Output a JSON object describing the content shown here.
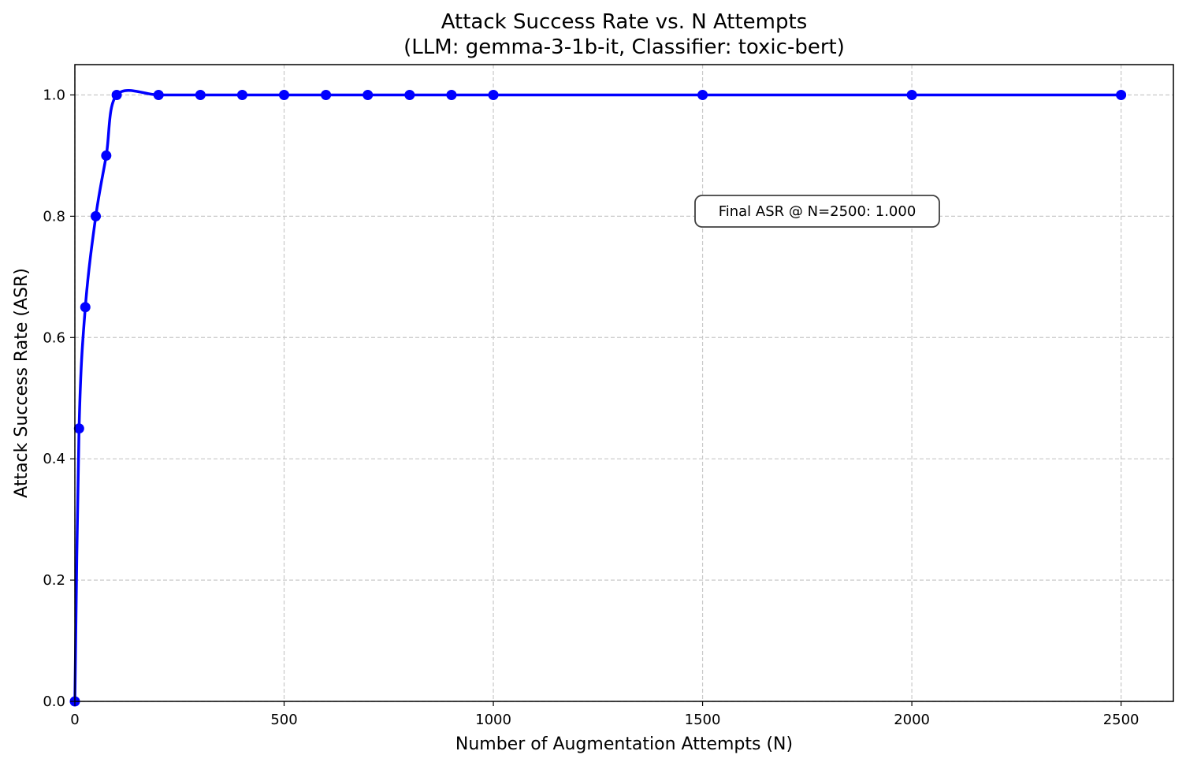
{
  "chart_data": {
    "type": "line",
    "title": "Attack Success Rate vs. N Attempts",
    "subtitle": "(LLM: gemma-3-1b-it, Classifier: toxic-bert)",
    "xlabel": "Number of Augmentation Attempts (N)",
    "ylabel": "Attack Success Rate (ASR)",
    "xlim": [
      0,
      2625
    ],
    "ylim": [
      0.0,
      1.05
    ],
    "xticks": [
      0,
      500,
      1000,
      1500,
      2000,
      2500
    ],
    "yticks": [
      0.0,
      0.2,
      0.4,
      0.6,
      0.8,
      1.0
    ],
    "xtick_labels": [
      "0",
      "500",
      "1000",
      "1500",
      "2000",
      "2500"
    ],
    "ytick_labels": [
      "0.0",
      "0.2",
      "0.4",
      "0.6",
      "0.8",
      "1.0"
    ],
    "grid": true,
    "series": [
      {
        "color": "#0000ff",
        "marker": "circle",
        "x": [
          0,
          10,
          25,
          50,
          75,
          100,
          200,
          300,
          400,
          500,
          600,
          700,
          800,
          900,
          1000,
          1500,
          2000,
          2500
        ],
        "y": [
          0.0,
          0.45,
          0.65,
          0.8,
          0.9,
          1.0,
          1.0,
          1.0,
          1.0,
          1.0,
          1.0,
          1.0,
          1.0,
          1.0,
          1.0,
          1.0,
          1.0,
          1.0
        ]
      }
    ],
    "annotation": {
      "text": "Final ASR @ N=2500: 1.000",
      "anchor_x": 1500,
      "anchor_y": 0.8
    }
  }
}
